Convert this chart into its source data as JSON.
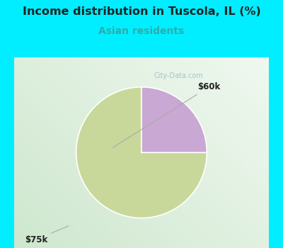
{
  "title": "Income distribution in Tuscola, IL (%)",
  "subtitle": "Asian residents",
  "subtitle_color": "#33aaaa",
  "title_color": "#222222",
  "background_color": "#00eeff",
  "slices": [
    75,
    25
  ],
  "slice_colors": [
    "#c8d89a",
    "#c9a8d4"
  ],
  "startangle": 90,
  "label_60k": "$60k",
  "label_75k": "$75k",
  "watermark": "City-Data.com",
  "watermark_color": "#99bbcc",
  "arrow_color": "#aaaaaa",
  "label_color": "#222222",
  "inner_bg_gradient_top": "#e8f5ee",
  "inner_bg_bottom": "#c8e8d8"
}
